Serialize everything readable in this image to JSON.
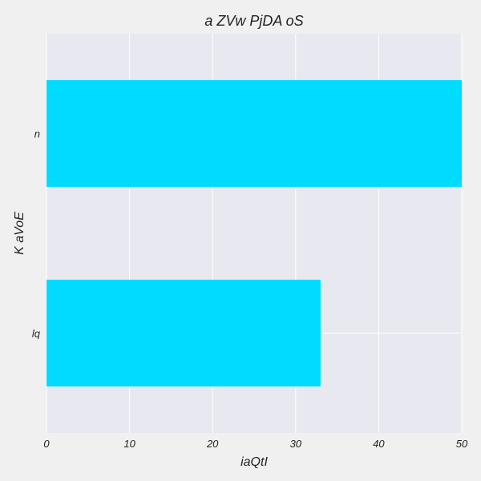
{
  "chart_data": {
    "type": "bar",
    "orientation": "horizontal",
    "title": "a ZVw PjDA oS",
    "xlabel": "iaQtI",
    "ylabel": "K aVoE",
    "categories": [
      "n",
      "lq"
    ],
    "values": [
      50,
      33
    ],
    "xlim": [
      0,
      50
    ],
    "xticks": [
      0,
      10,
      20,
      30,
      40,
      50
    ],
    "grid": true,
    "legend": "none",
    "bar_color": "#00dcff",
    "plot_background": "#e8e8f0",
    "figure_background": "#f0f0f0"
  }
}
